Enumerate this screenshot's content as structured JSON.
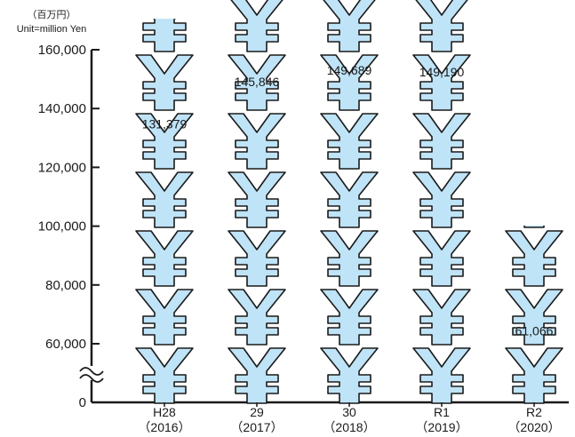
{
  "chart_data": {
    "type": "bar",
    "unit_label_ja": "（百万円）",
    "unit_label_en": "Unit=million Yen",
    "y_ticks": [
      "0",
      "60,000",
      "80,000",
      "100,000",
      "120,000",
      "140,000",
      "160,000"
    ],
    "y_tick_values": [
      0,
      60000,
      80000,
      100000,
      120000,
      140000,
      160000
    ],
    "axis_break_between": [
      0,
      60000
    ],
    "categories": [
      {
        "label": "H28",
        "sub": "（2016）"
      },
      {
        "label": "29",
        "sub": "（2017）"
      },
      {
        "label": "30",
        "sub": "（2018）"
      },
      {
        "label": "R1",
        "sub": "（2019）"
      },
      {
        "label": "R2",
        "sub": "（2020）"
      }
    ],
    "values": [
      131379,
      145846,
      149689,
      149190,
      61066
    ],
    "value_labels": [
      "131,379",
      "145,846",
      "149,689",
      "149,190",
      "61,066"
    ],
    "icon": "yen-symbol-icon",
    "icon_fill": "#bfe3f7",
    "icon_stroke": "#1a1a1a",
    "axis_color": "#1a1a1a"
  }
}
